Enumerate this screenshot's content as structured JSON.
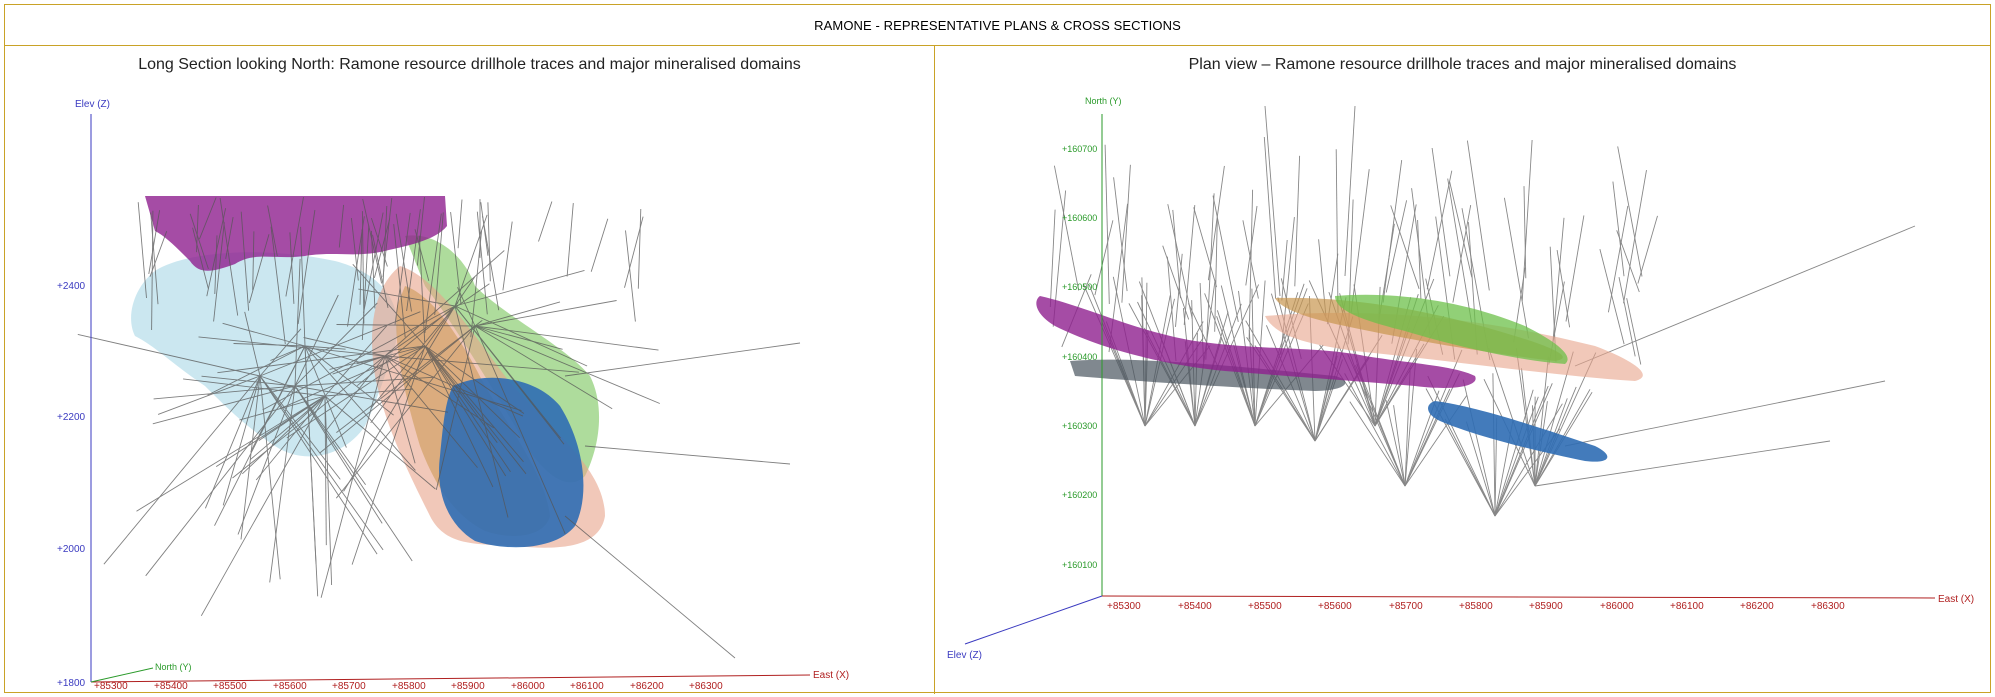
{
  "header": {
    "title": "RAMONE - REPRESENTATIVE PLANS & CROSS SECTIONS"
  },
  "left_panel": {
    "caption": "Long Section looking North: Ramone resource drillhole traces and major mineralised domains",
    "axis_z_label": "Elev (Z)",
    "axis_x_label": "East (X)",
    "axis_y_label": "North (Y)",
    "z_ticks": [
      "+2400",
      "+2200",
      "+2000",
      "+1800"
    ],
    "x_ticks": [
      "+85300",
      "+85400",
      "+85500",
      "+85600",
      "+85700",
      "+85800",
      "+85900",
      "+86000",
      "+86100",
      "+86200",
      "+86300"
    ]
  },
  "right_panel": {
    "caption": "Plan view – Ramone resource drillhole traces and major mineralised domains",
    "axis_y_label": "North (Y)",
    "axis_x_label": "East (X)",
    "axis_z_label": "Elev (Z)",
    "y_ticks": [
      "+160700",
      "+160600",
      "+160500",
      "+160400",
      "+160300",
      "+160200",
      "+160100"
    ],
    "x_ticks": [
      "+85300",
      "+85400",
      "+85500",
      "+85600",
      "+85700",
      "+85800",
      "+85900",
      "+86000",
      "+86100",
      "+86200",
      "+86300"
    ]
  },
  "colors": {
    "border": "#c9a227",
    "drillhole": "#555555",
    "domain_purple": "#8e1f8e",
    "domain_lightblue": "#b9dfeb",
    "domain_green": "#6cc04a",
    "domain_salmon": "#e8a38a",
    "domain_tan": "#c8954f",
    "domain_blue": "#2f6db4",
    "domain_grey": "#4a5560"
  }
}
